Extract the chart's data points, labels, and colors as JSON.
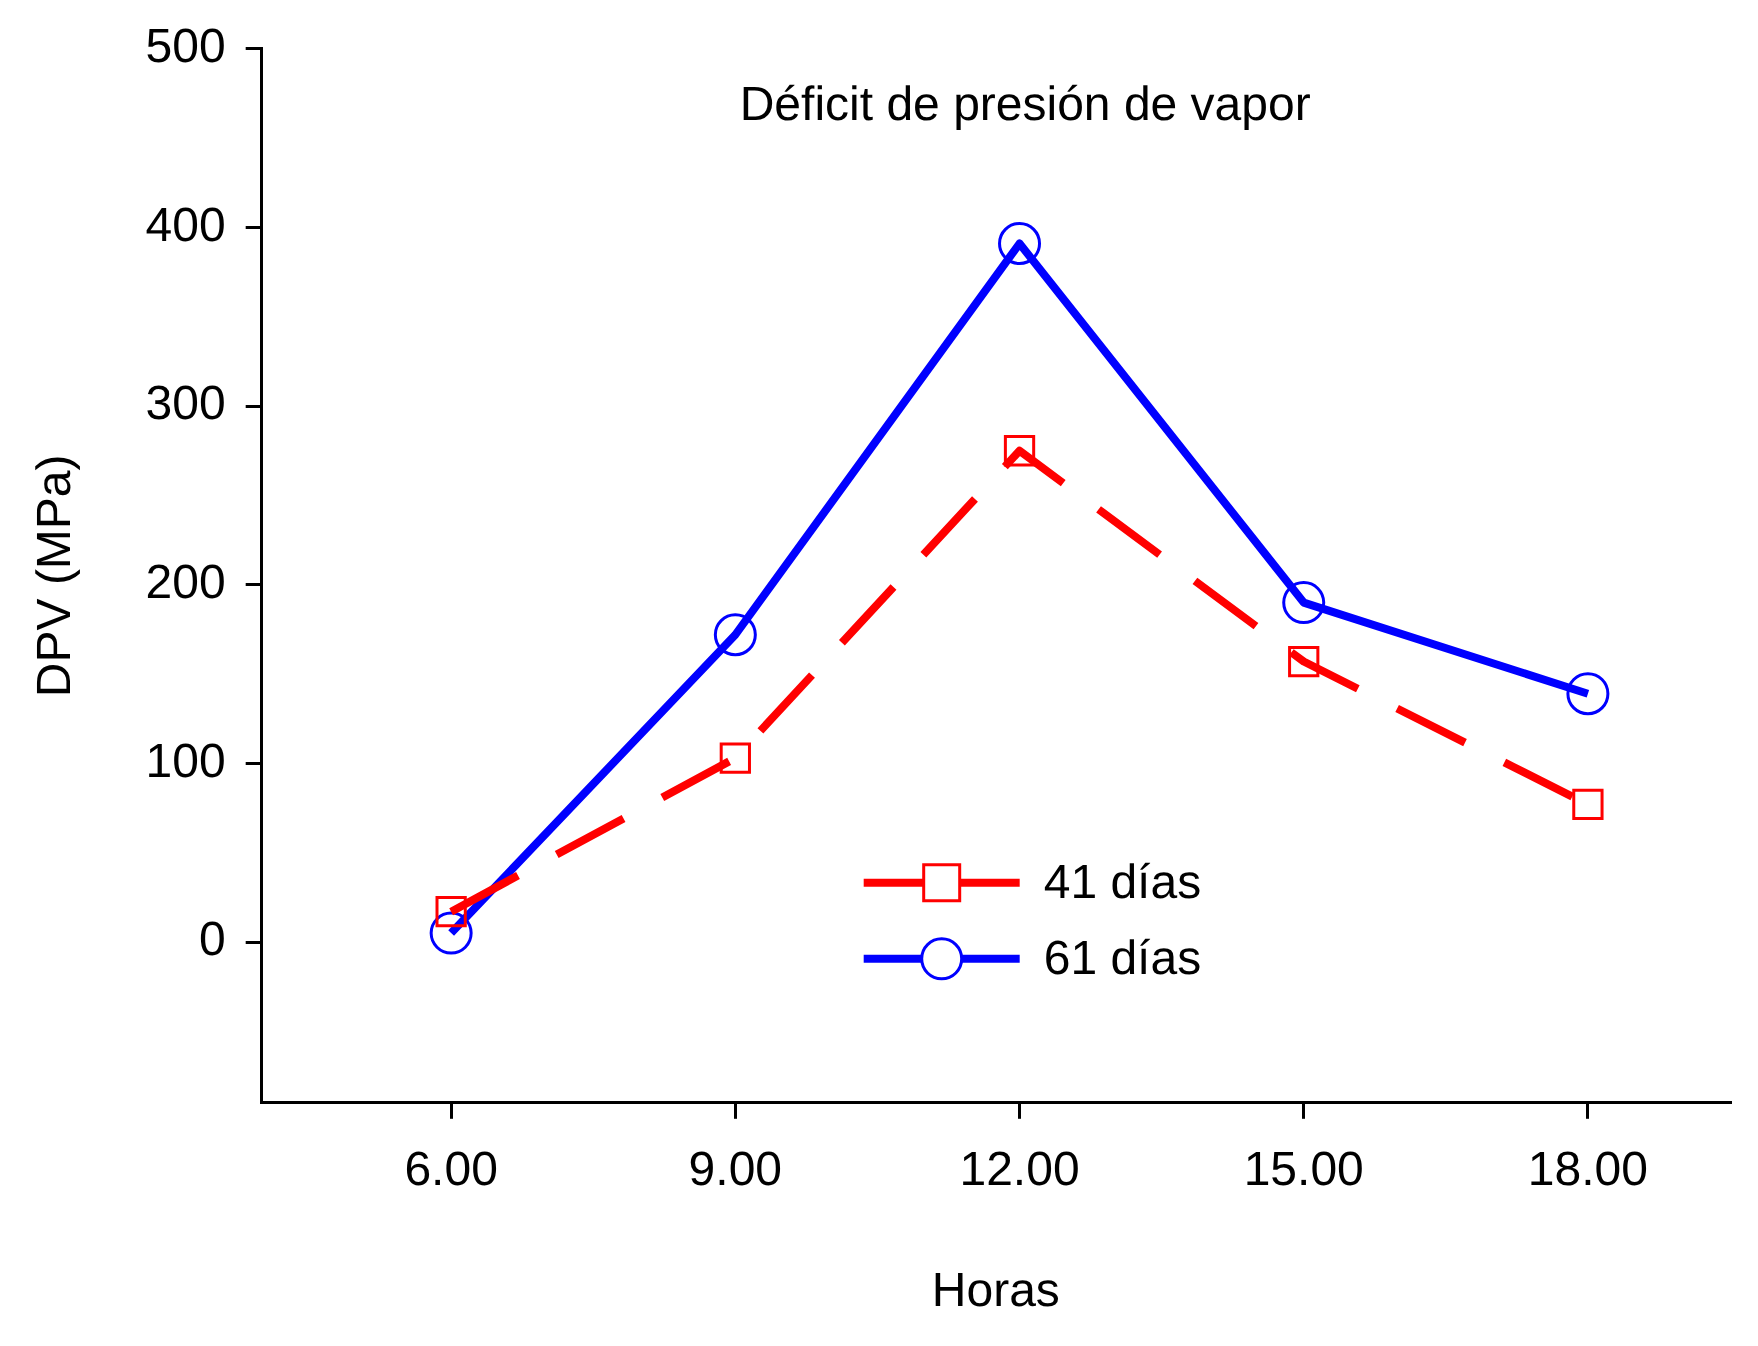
{
  "chart_data": {
    "type": "line",
    "title": "Déficit de presión de vapor",
    "xlabel": "Horas",
    "ylabel": "DPV (MPa)",
    "x": [
      6,
      9,
      12,
      15,
      18
    ],
    "series": [
      {
        "name": "41 días",
        "color": "#ff0000",
        "values": [
          17,
          103,
          275,
          157,
          77
        ],
        "marker": "square",
        "line_style": "dashed"
      },
      {
        "name": "61 días",
        "color": "#0000ff",
        "values": [
          5,
          172,
          391,
          190,
          139
        ],
        "marker": "circle",
        "line_style": "solid"
      }
    ],
    "xlim": [
      4,
      19.5
    ],
    "xticks": [
      {
        "value": 6,
        "label": "6.00"
      },
      {
        "value": 9,
        "label": "9.00"
      },
      {
        "value": 12,
        "label": "12.00"
      },
      {
        "value": 15,
        "label": "15.00"
      },
      {
        "value": 18,
        "label": "18.00"
      }
    ],
    "ylim": [
      -90,
      500
    ],
    "yticks": [
      0,
      100,
      200,
      300,
      400,
      500
    ],
    "grid": false,
    "legend": "bottom"
  }
}
